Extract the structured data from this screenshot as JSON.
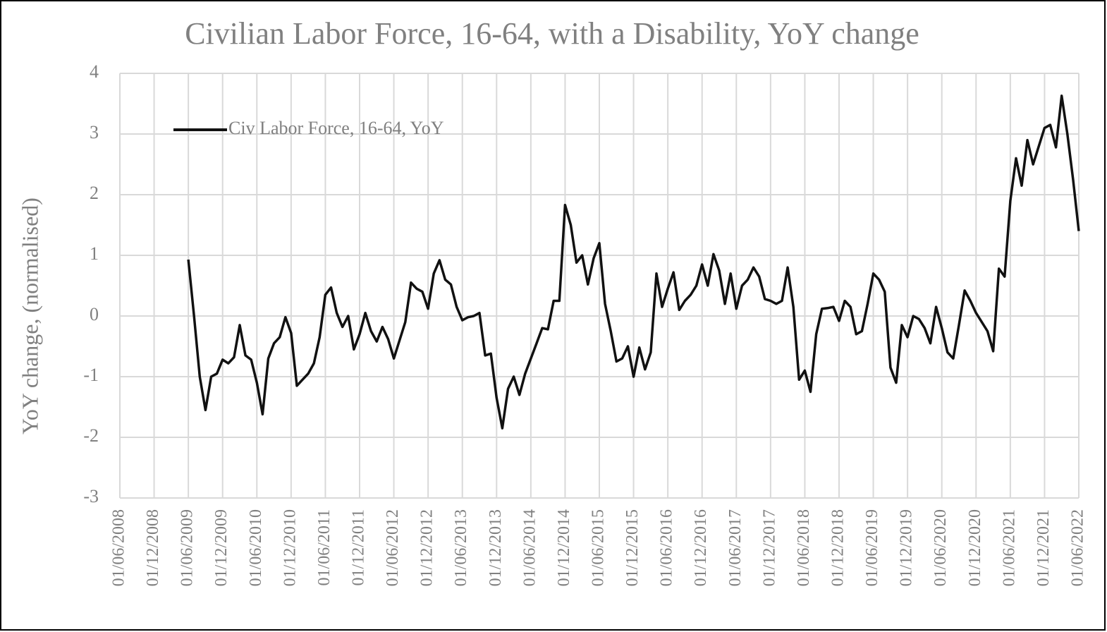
{
  "chart_data": {
    "type": "line",
    "title": "Civilian Labor Force, 16-64, with a Disability, YoY change",
    "y_label": "YoY change, (normalised)",
    "categories": [
      "01/06/2008",
      null,
      null,
      null,
      null,
      null,
      "01/12/2008",
      null,
      null,
      null,
      null,
      null,
      "01/06/2009",
      null,
      null,
      null,
      null,
      null,
      "01/12/2009",
      null,
      null,
      null,
      null,
      null,
      "01/06/2010",
      null,
      null,
      null,
      null,
      null,
      "01/12/2010",
      null,
      null,
      null,
      null,
      null,
      "01/06/2011",
      null,
      null,
      null,
      null,
      null,
      "01/12/2011",
      null,
      null,
      null,
      null,
      null,
      "01/06/2012",
      null,
      null,
      null,
      null,
      null,
      "01/12/2012",
      null,
      null,
      null,
      null,
      null,
      "01/06/2013",
      null,
      null,
      null,
      null,
      null,
      "01/12/2013",
      null,
      null,
      null,
      null,
      null,
      "01/06/2014",
      null,
      null,
      null,
      null,
      null,
      "01/12/2014",
      null,
      null,
      null,
      null,
      null,
      "01/06/2015",
      null,
      null,
      null,
      null,
      null,
      "01/12/2015",
      null,
      null,
      null,
      null,
      null,
      "01/06/2016",
      null,
      null,
      null,
      null,
      null,
      "01/12/2016",
      null,
      null,
      null,
      null,
      null,
      "01/06/2017",
      null,
      null,
      null,
      null,
      null,
      "01/12/2017",
      null,
      null,
      null,
      null,
      null,
      "01/06/2018",
      null,
      null,
      null,
      null,
      null,
      "01/12/2018",
      null,
      null,
      null,
      null,
      null,
      "01/06/2019",
      null,
      null,
      null,
      null,
      null,
      "01/12/2019",
      null,
      null,
      null,
      null,
      null,
      "01/06/2020",
      null,
      null,
      null,
      null,
      null,
      "01/12/2020",
      null,
      null,
      null,
      null,
      null,
      "01/06/2021",
      null,
      null,
      null,
      null,
      null,
      "01/12/2021",
      null,
      null,
      null,
      null,
      null,
      "01/06/2022"
    ],
    "series": [
      {
        "name": "Civ Labor Force, 16-64, YoY",
        "color": "#111111",
        "values": [
          null,
          null,
          null,
          null,
          null,
          null,
          null,
          null,
          null,
          null,
          null,
          null,
          0.93,
          0.0,
          -1.0,
          -1.55,
          -1.0,
          -0.95,
          -0.72,
          -0.78,
          -0.68,
          -0.15,
          -0.65,
          -0.72,
          -1.1,
          -1.62,
          -0.7,
          -0.45,
          -0.35,
          -0.02,
          -0.28,
          -1.15,
          -1.05,
          -0.95,
          -0.78,
          -0.35,
          0.35,
          0.47,
          0.05,
          -0.18,
          0.0,
          -0.55,
          -0.3,
          0.05,
          -0.25,
          -0.42,
          -0.18,
          -0.38,
          -0.7,
          -0.4,
          -0.1,
          0.55,
          0.45,
          0.4,
          0.12,
          0.7,
          0.92,
          0.6,
          0.52,
          0.15,
          -0.07,
          -0.02,
          0.0,
          0.05,
          -0.65,
          -0.62,
          -1.35,
          -1.85,
          -1.2,
          -1.0,
          -1.3,
          -0.95,
          -0.7,
          -0.45,
          -0.2,
          -0.22,
          0.25,
          0.25,
          1.83,
          1.5,
          0.88,
          1.0,
          0.52,
          0.95,
          1.2,
          0.2,
          -0.25,
          -0.75,
          -0.7,
          -0.5,
          -1.0,
          -0.52,
          -0.88,
          -0.6,
          0.7,
          0.15,
          0.45,
          0.72,
          0.1,
          0.25,
          0.35,
          0.5,
          0.85,
          0.5,
          1.02,
          0.75,
          0.2,
          0.7,
          0.12,
          0.5,
          0.6,
          0.8,
          0.65,
          0.28,
          0.25,
          0.2,
          0.25,
          0.8,
          0.15,
          -1.05,
          -0.9,
          -1.25,
          -0.3,
          0.12,
          0.13,
          0.15,
          -0.08,
          0.25,
          0.15,
          -0.3,
          -0.25,
          0.2,
          0.7,
          0.6,
          0.4,
          -0.85,
          -1.1,
          -0.15,
          -0.35,
          0.0,
          -0.05,
          -0.2,
          -0.45,
          0.15,
          -0.2,
          -0.6,
          -0.7,
          -0.15,
          0.42,
          0.25,
          0.05,
          -0.1,
          -0.25,
          -0.58,
          0.78,
          0.65,
          1.9,
          2.6,
          2.15,
          2.9,
          2.5,
          2.8,
          3.1,
          3.15,
          2.78,
          3.63,
          3.0,
          2.25,
          1.4
        ]
      }
    ],
    "ylim": [
      -3,
      4
    ],
    "yticks": [
      -3,
      -2,
      -1,
      0,
      1,
      2,
      3,
      4
    ],
    "grid": true,
    "legend": "top-left"
  }
}
